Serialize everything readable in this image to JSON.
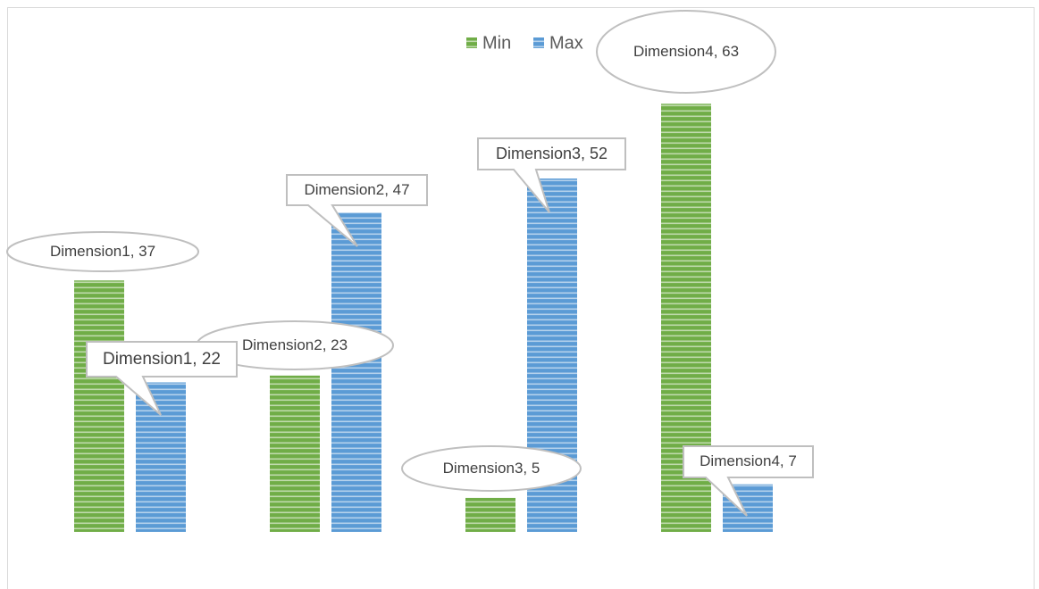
{
  "chart_data": {
    "type": "bar",
    "categories": [
      null,
      null,
      null,
      null
    ],
    "series": [
      {
        "name": "Min",
        "color": "#70ad47",
        "values": [
          37,
          23,
          5,
          63
        ],
        "value_labels": [
          "Dimension1, 37",
          "Dimension2, 23",
          "Dimension3, 5",
          "Dimension4, 63"
        ]
      },
      {
        "name": "Max",
        "color": "#5b9bd5",
        "values": [
          22,
          47,
          52,
          7
        ],
        "value_labels": [
          "Dimension1, 22",
          "Dimension2, 47",
          "Dimension3, 52",
          "Dimension4, 7"
        ]
      }
    ],
    "ylim": [
      0,
      70
    ],
    "legend": "top"
  }
}
